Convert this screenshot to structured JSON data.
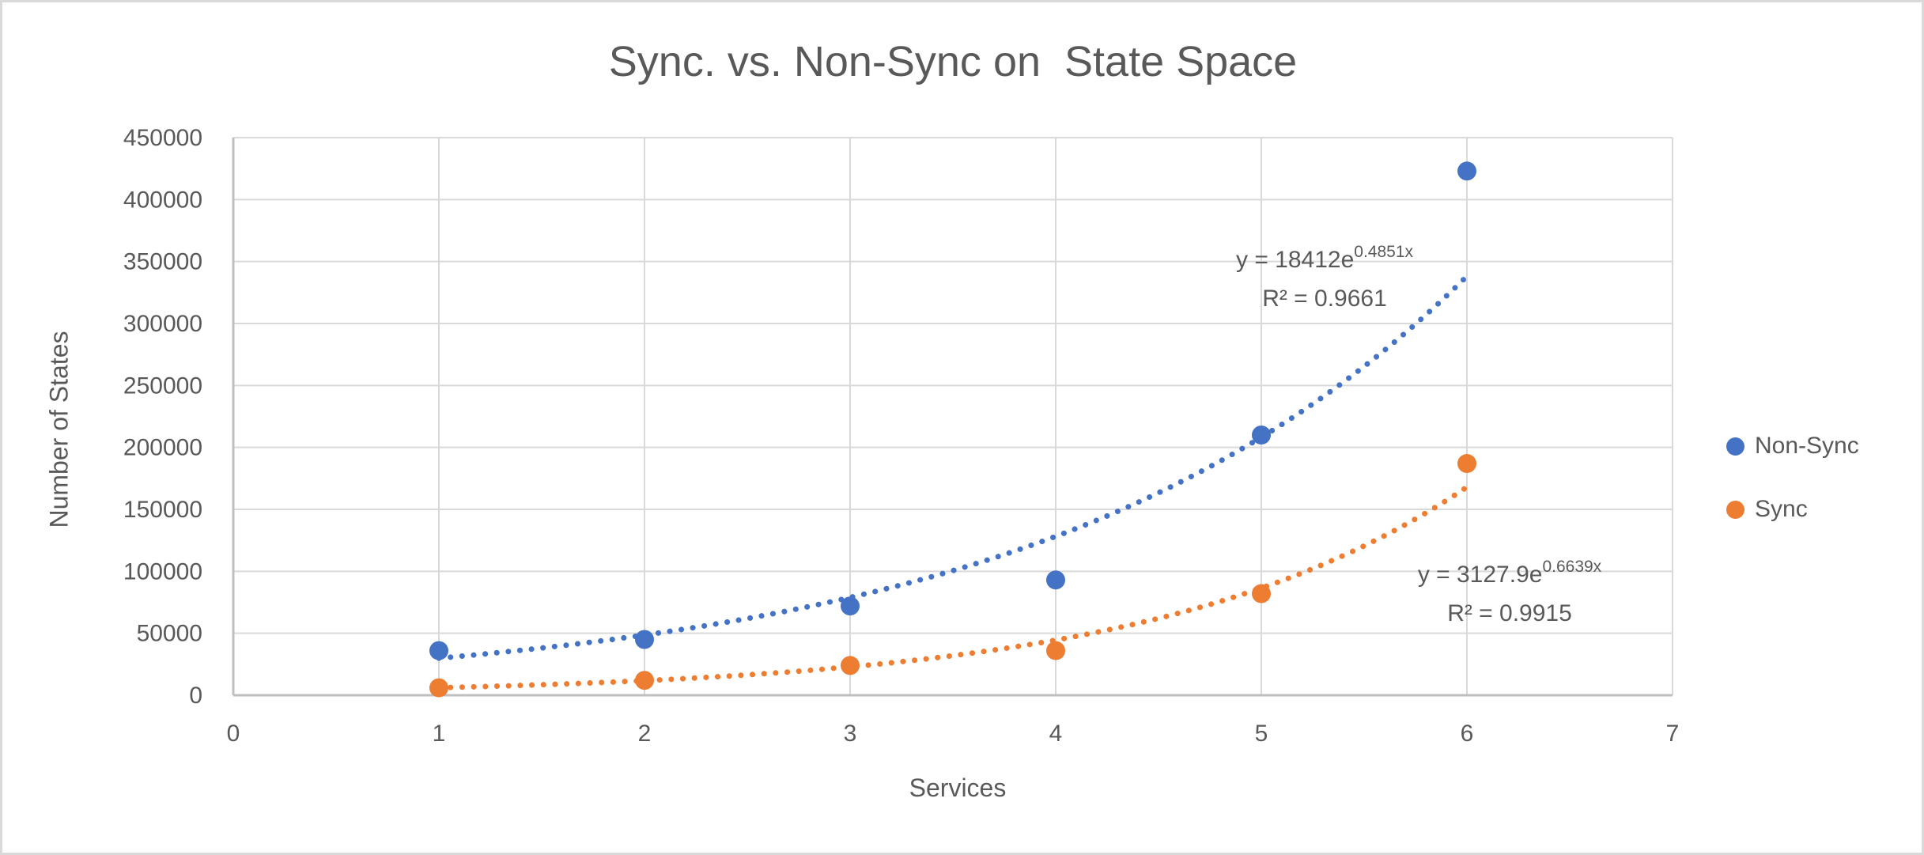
{
  "colors": {
    "non_sync": "#4472C4",
    "sync": "#ED7D31",
    "text": "#595959",
    "gridline": "#D9D9D9",
    "axis_line": "#BFBFBF",
    "border": "#D9D9D9"
  },
  "chart_data": {
    "type": "scatter",
    "title": "Sync. vs. Non-Sync on  State Space",
    "xlabel": "Services",
    "ylabel": "Number of States",
    "xlim": [
      0,
      7
    ],
    "ylim": [
      0,
      450000
    ],
    "x_ticks": [
      0,
      1,
      2,
      3,
      4,
      5,
      6,
      7
    ],
    "y_ticks": [
      0,
      50000,
      100000,
      150000,
      200000,
      250000,
      300000,
      350000,
      400000,
      450000
    ],
    "grid": true,
    "legend_position": "right",
    "marker_style": "filled-circle",
    "trendline_style": "dotted",
    "series": [
      {
        "name": "Non-Sync",
        "color": "#4472C4",
        "x": [
          1,
          2,
          3,
          4,
          5,
          6
        ],
        "values": [
          36000,
          45000,
          72000,
          93000,
          210000,
          423000
        ],
        "trendline": {
          "type": "exponential",
          "a": 18412,
          "b": 0.4851,
          "x_range": [
            1,
            6
          ],
          "equation_base": "y = 18412e",
          "equation_exponent": "0.4851x",
          "r2": "R² = 0.9661"
        }
      },
      {
        "name": "Sync",
        "color": "#ED7D31",
        "x": [
          1,
          2,
          3,
          4,
          5,
          6
        ],
        "values": [
          6000,
          12000,
          24000,
          36000,
          82000,
          187000
        ],
        "trendline": {
          "type": "exponential",
          "a": 3127.9,
          "b": 0.6639,
          "x_range": [
            1,
            6
          ],
          "equation_base": "y = 3127.9e",
          "equation_exponent": "0.6639x",
          "r2": "R² = 0.9915"
        }
      }
    ]
  }
}
